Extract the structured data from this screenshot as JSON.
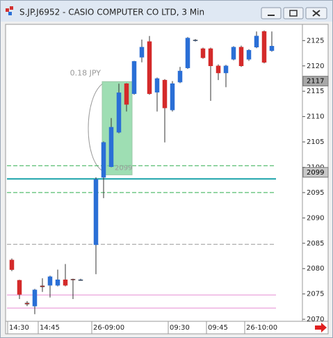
{
  "window_title": "S.JP.J6952 - CASIO COMPUTER CO LTD, 3 Min",
  "chart_data": {
    "type": "candlestick",
    "categories": [
      "14:30",
      null,
      null,
      null,
      "14:45",
      null,
      null,
      null,
      null,
      null,
      null,
      "26-09:00",
      null,
      null,
      null,
      null,
      null,
      null,
      null,
      null,
      null,
      "09:30",
      null,
      null,
      null,
      null,
      "09:45",
      null,
      null,
      null,
      null,
      "26-10:00",
      null,
      null,
      null
    ],
    "open": [
      2081.7,
      2077.7,
      2073.2,
      2072.6,
      2076.6,
      2076.7,
      2076.7,
      2077.8,
      2077.9,
      2077.8,
      null,
      2084.7,
      2098,
      2100.1,
      2106.9,
      2116.5,
      2114.5,
      2121.7,
      2124.8,
      2114.8,
      2117.2,
      2111.3,
      2116.8,
      2119.6,
      2125.1,
      2123.4,
      2123.4,
      2120,
      2118.6,
      2121.3,
      2123.7,
      2121.3,
      2123.7,
      2126.8,
      2123
    ],
    "high": [
      2082,
      2077.8,
      2073.6,
      2076,
      2078.1,
      2078.6,
      2079.8,
      2080.9,
      2078,
      2078,
      null,
      2098,
      2105.1,
      2109.7,
      2116.5,
      2116.6,
      2121,
      2125.2,
      2125.9,
      2117.7,
      2117.4,
      2117,
      2119.8,
      2125.7,
      2125.3,
      2123.6,
      2123.6,
      2120.3,
      2120.2,
      2123.9,
      2124,
      2123.3,
      2126.8,
      2127,
      2126.8
    ],
    "low": [
      2079.5,
      2074,
      2072.6,
      2071,
      2075.4,
      2074.3,
      2076.5,
      2076.5,
      2074,
      2077.6,
      null,
      2078.9,
      2093.9,
      2100,
      2106.7,
      2111,
      2114.3,
      2120.7,
      2114.3,
      2111,
      2104.9,
      2111,
      2116.6,
      2119.4,
      2124.8,
      2121.4,
      2113.1,
      2117.2,
      2115.8,
      2121.1,
      2119.8,
      2121,
      2123.5,
      2120.5,
      2122.8
    ],
    "close": [
      2079.8,
      2074.9,
      2073,
      2075.8,
      2076.4,
      2078.4,
      2077.8,
      2076.7,
      2077.8,
      2077.8,
      null,
      2097.6,
      2104.9,
      2107.9,
      2114.7,
      2112.4,
      2120.9,
      2123.7,
      2114.5,
      2117.5,
      2111.7,
      2116.5,
      2119,
      2125.5,
      2125.1,
      2121.6,
      2120,
      2118.6,
      2120,
      2123.7,
      2120,
      2123.1,
      2125.9,
      2120.7,
      2123.9
    ],
    "up_color": "#2a6fd6",
    "down_color": "#d42a2a",
    "ylim": [
      2069.6,
      2128.2
    ],
    "yticks": [
      2070,
      2075,
      2080,
      2085,
      2090,
      2095,
      2100,
      2105,
      2110,
      2115,
      2120,
      2125
    ],
    "levels": [
      {
        "value": 2100.3,
        "color": "#2fae4e",
        "style": "dashed"
      },
      {
        "value": 2097.7,
        "color": "#1aa3aa",
        "style": "solid"
      },
      {
        "value": 2095,
        "color": "#2fae4e",
        "style": "dashed"
      },
      {
        "value": 2084.8,
        "color": "#999999",
        "style": "dashed"
      },
      {
        "value": 2074.8,
        "color": "#e58ad2",
        "style": "solid"
      },
      {
        "value": 2072.2,
        "color": "#e58ad2",
        "style": "solid"
      }
    ],
    "price_tags": [
      2117,
      2099
    ],
    "measure": {
      "label": "0.18 JPY",
      "from": 2098.5,
      "to": 2116.9,
      "end_label": 2099
    }
  }
}
